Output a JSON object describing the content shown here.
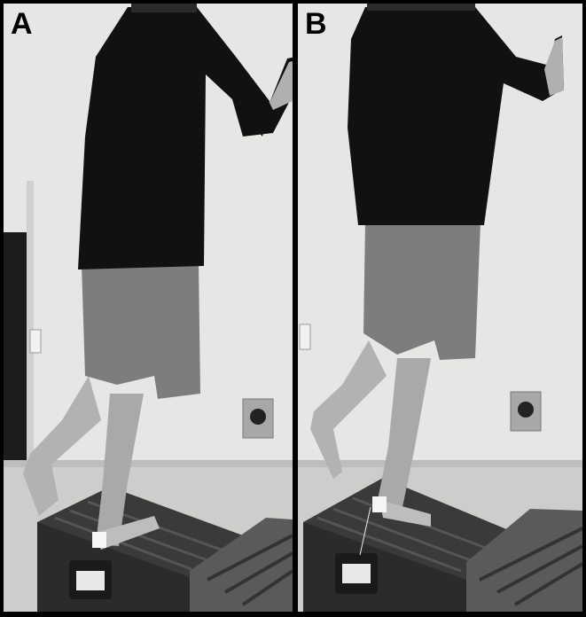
{
  "figure": {
    "panels": [
      {
        "label": "A",
        "image": "person-standing-on-inclined-platform-single-leg-heel-raise-start"
      },
      {
        "label": "B",
        "image": "person-standing-on-inclined-platform-single-leg-heel-raise-up"
      }
    ],
    "colors": {
      "background_wall": "#e9e9e7",
      "sweater": "#111111",
      "shorts": "#7d7d7d",
      "skin": "#b5b5b5",
      "platform": "#3a3a3a",
      "floor": "#cfcfcd"
    }
  }
}
